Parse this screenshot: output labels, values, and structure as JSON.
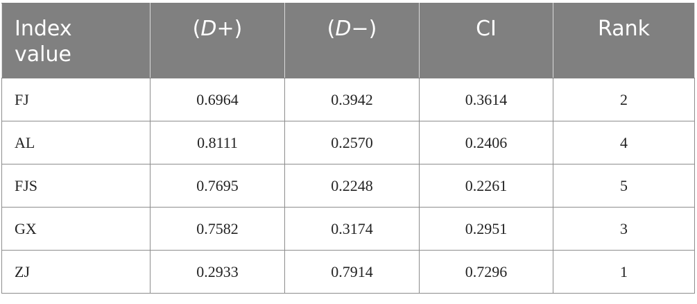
{
  "table": {
    "header": {
      "index_value": "Index\nvalue",
      "d_plus_open": "(",
      "d_plus_var": "D",
      "d_plus_close": "+)",
      "d_minus_open": "(",
      "d_minus_var": "D",
      "d_minus_close": "−)",
      "ci": "CI",
      "rank": "Rank"
    },
    "rows": [
      {
        "index": "FJ",
        "d_plus": "0.6964",
        "d_minus": "0.3942",
        "ci": "0.3614",
        "rank": "2"
      },
      {
        "index": "AL",
        "d_plus": "0.8111",
        "d_minus": "0.2570",
        "ci": "0.2406",
        "rank": "4"
      },
      {
        "index": "FJS",
        "d_plus": "0.7695",
        "d_minus": "0.2248",
        "ci": "0.2261",
        "rank": "5"
      },
      {
        "index": "GX",
        "d_plus": "0.7582",
        "d_minus": "0.3174",
        "ci": "0.2951",
        "rank": "3"
      },
      {
        "index": "ZJ",
        "d_plus": "0.2933",
        "d_minus": "0.7914",
        "ci": "0.7296",
        "rank": "1"
      }
    ],
    "colors": {
      "header_bg": "#808080",
      "header_text": "#ffffff",
      "cell_border": "#8c8c8c"
    }
  }
}
